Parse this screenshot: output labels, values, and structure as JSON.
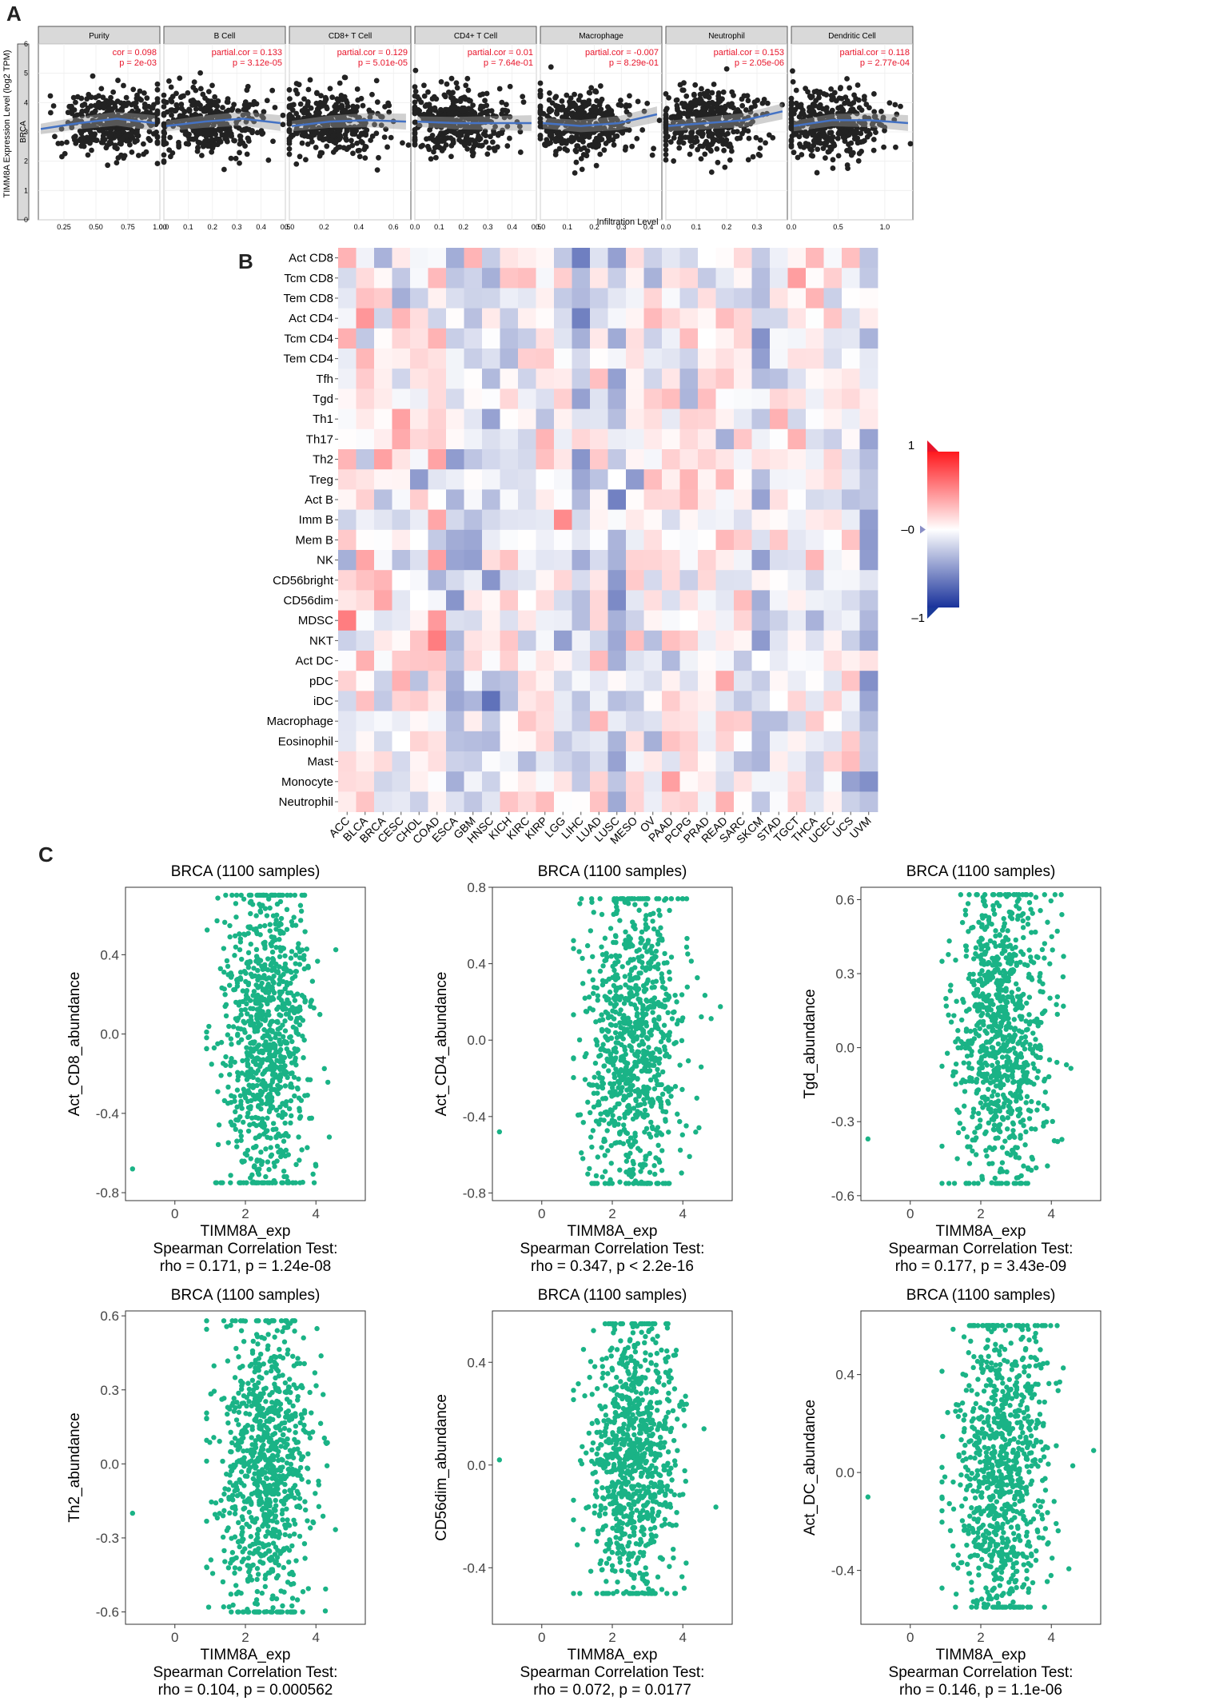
{
  "panel_labels": {
    "a": "A",
    "b": "B",
    "c": "C"
  },
  "colors": {
    "accent_red": "#e8142a",
    "accent_blue": "#1b3a9a",
    "scatter_green": "#1ab386",
    "strip": "#d9d9d9",
    "line_blue": "#4472c4"
  },
  "chart_data": [
    {
      "type": "scatter",
      "panel": "A",
      "cancer": "BRCA",
      "ylabel": "TIMM8A Expression Level (log2 TPM)",
      "xlabel": "Infiltration Level",
      "ylim": [
        0,
        6
      ],
      "yticks": [
        0,
        1,
        2,
        3,
        4,
        5,
        6
      ],
      "facets": [
        {
          "name": "Purity",
          "stat1": "cor = 0.098",
          "stat2": "p = 2e-03",
          "xlim": [
            0.05,
            1.0
          ],
          "xticks": [
            0.25,
            0.5,
            0.75,
            1.0
          ],
          "xtick_labels": [
            "0.25",
            "0.50",
            "0.75",
            "1.00"
          ],
          "trend": [
            3.1,
            3.3,
            3.45,
            3.3
          ]
        },
        {
          "name": "B Cell",
          "stat1": "partial.cor = 0.133",
          "stat2": "p = 3.12e-05",
          "xlim": [
            0,
            0.5
          ],
          "xticks": [
            0,
            0.1,
            0.2,
            0.3,
            0.4,
            0.5
          ],
          "xtick_labels": [
            "0.0",
            "0.1",
            "0.2",
            "0.3",
            "0.4",
            "0.5"
          ],
          "trend": [
            3.2,
            3.35,
            3.45,
            3.3
          ]
        },
        {
          "name": "CD8+ T Cell",
          "stat1": "partial.cor = 0.129",
          "stat2": "p = 5.01e-05",
          "xlim": [
            0,
            0.7
          ],
          "xticks": [
            0,
            0.2,
            0.4,
            0.6
          ],
          "xtick_labels": [
            "0.0",
            "0.2",
            "0.4",
            "0.6"
          ],
          "trend": [
            3.2,
            3.35,
            3.4,
            3.35
          ]
        },
        {
          "name": "CD4+ T Cell",
          "stat1": "partial.cor = 0.01",
          "stat2": "p = 7.64e-01",
          "xlim": [
            0,
            0.5
          ],
          "xticks": [
            0,
            0.1,
            0.2,
            0.3,
            0.4,
            0.5
          ],
          "xtick_labels": [
            "0.0",
            "0.1",
            "0.2",
            "0.3",
            "0.4",
            "0.5"
          ],
          "trend": [
            3.35,
            3.3,
            3.3,
            3.3
          ]
        },
        {
          "name": "Macrophage",
          "stat1": "partial.cor = -0.007",
          "stat2": "p = 8.29e-01",
          "xlim": [
            0,
            0.45
          ],
          "xticks": [
            0,
            0.1,
            0.2,
            0.3,
            0.4
          ],
          "xtick_labels": [
            "0.0",
            "0.1",
            "0.2",
            "0.3",
            "0.4"
          ],
          "trend": [
            3.3,
            3.2,
            3.3,
            3.6
          ]
        },
        {
          "name": "Neutrophil",
          "stat1": "partial.cor = 0.153",
          "stat2": "p = 2.05e-06",
          "xlim": [
            0,
            0.4
          ],
          "xticks": [
            0,
            0.1,
            0.2,
            0.3
          ],
          "xtick_labels": [
            "0.0",
            "0.1",
            "0.2",
            "0.3"
          ],
          "trend": [
            3.2,
            3.3,
            3.4,
            3.7
          ]
        },
        {
          "name": "Dendritic Cell",
          "stat1": "partial.cor = 0.118",
          "stat2": "p = 2.77e-04",
          "xlim": [
            0,
            1.3
          ],
          "xticks": [
            0,
            0.5,
            1.0
          ],
          "xtick_labels": [
            "0.0",
            "0.5",
            "1.0"
          ],
          "trend": [
            3.2,
            3.4,
            3.4,
            3.3
          ]
        }
      ]
    },
    {
      "type": "heatmap",
      "panel": "B",
      "rows": [
        "Act CD8",
        "Tcm CD8",
        "Tem CD8",
        "Act CD4",
        "Tcm CD4",
        "Tem CD4",
        "Tfh",
        "Tgd",
        "Th1",
        "Th17",
        "Th2",
        "Treg",
        "Act B",
        "Imm B",
        "Mem B",
        "NK",
        "CD56bright",
        "CD56dim",
        "MDSC",
        "NKT",
        "Act DC",
        "pDC",
        "iDC",
        "Macrophage",
        "Eosinophil",
        "Mast",
        "Monocyte",
        "Neutrophil"
      ],
      "columns": [
        "ACC",
        "BLCA",
        "BRCA",
        "CESC",
        "CHOL",
        "COAD",
        "ESCA",
        "GBM",
        "HNSC",
        "KICH",
        "KIRC",
        "KIRP",
        "LGG",
        "LIHC",
        "LUAD",
        "LUSC",
        "MESO",
        "OV",
        "PAAD",
        "PCPG",
        "PRAD",
        "READ",
        "SARC",
        "SKCM",
        "STAD",
        "TGCT",
        "THCA",
        "UCEC",
        "UCS",
        "UVM"
      ],
      "legend": {
        "max_label": "1",
        "mid_label": "0",
        "min_label": "-1",
        "range": [
          -1,
          1
        ]
      }
    },
    {
      "type": "scatter",
      "panel": "C",
      "plots": [
        {
          "title": "BRCA (1100 samples)",
          "xlabel": "TIMM8A_exp",
          "ylabel": "Act_CD8_abundance",
          "stat_title": "Spearman Correlation Test:",
          "stat": "rho = 0.171, p = 1.24e-08",
          "xlim": [
            -1.4,
            5.4
          ],
          "ylim": [
            -0.84,
            0.74
          ],
          "xticks": [
            0,
            2,
            4
          ],
          "yticks": [
            -0.8,
            -0.4,
            0.0,
            0.4
          ],
          "ytick_labels": [
            "-0.8",
            "-0.4",
            "0.0",
            "0.4"
          ],
          "outlier": [
            -1.2,
            -0.68
          ],
          "cloud_y": [
            -0.75,
            0.7
          ],
          "cloud_center": 0.0
        },
        {
          "title": "BRCA (1100 samples)",
          "xlabel": "TIMM8A_exp",
          "ylabel": "Act_CD4_abundance",
          "stat_title": "Spearman Correlation Test:",
          "stat": "rho = 0.347, p < 2.2e-16",
          "xlim": [
            -1.4,
            5.4
          ],
          "ylim": [
            -0.84,
            0.8
          ],
          "xticks": [
            0,
            2,
            4
          ],
          "yticks": [
            -0.8,
            -0.4,
            0.0,
            0.4,
            0.8
          ],
          "ytick_labels": [
            "-0.8",
            "-0.4",
            "0.0",
            "0.4",
            "0.8"
          ],
          "outlier": [
            -1.2,
            -0.48
          ],
          "cloud_y": [
            -0.75,
            0.74
          ],
          "cloud_center": 0.0
        },
        {
          "title": "BRCA (1100 samples)",
          "xlabel": "TIMM8A_exp",
          "ylabel": "Tgd_abundance",
          "stat_title": "Spearman Correlation Test:",
          "stat": "rho = 0.177, p = 3.43e-09",
          "xlim": [
            -1.4,
            5.4
          ],
          "ylim": [
            -0.62,
            0.65
          ],
          "xticks": [
            0,
            2,
            4
          ],
          "yticks": [
            -0.6,
            -0.3,
            0.0,
            0.3,
            0.6
          ],
          "ytick_labels": [
            "-0.6",
            "-0.3",
            "0.0",
            "0.3",
            "0.6"
          ],
          "outlier": [
            -1.2,
            -0.37
          ],
          "cloud_y": [
            -0.55,
            0.62
          ],
          "cloud_center": 0.0
        },
        {
          "title": "BRCA (1100 samples)",
          "xlabel": "TIMM8A_exp",
          "ylabel": "Th2_abundance",
          "stat_title": "Spearman Correlation Test:",
          "stat": "rho = 0.104, p = 0.000562",
          "xlim": [
            -1.4,
            5.4
          ],
          "ylim": [
            -0.65,
            0.62
          ],
          "xticks": [
            0,
            2,
            4
          ],
          "yticks": [
            -0.6,
            -0.3,
            0.0,
            0.3,
            0.6
          ],
          "ytick_labels": [
            "-0.6",
            "-0.3",
            "0.0",
            "0.3",
            "0.6"
          ],
          "outlier": [
            -1.2,
            -0.2
          ],
          "cloud_y": [
            -0.6,
            0.58
          ],
          "cloud_center": 0.0
        },
        {
          "title": "BRCA (1100 samples)",
          "xlabel": "TIMM8A_exp",
          "ylabel": "CD56dim_abundance",
          "stat_title": "Spearman Correlation Test:",
          "stat": "rho = 0.072, p = 0.0177",
          "xlim": [
            -1.4,
            5.4
          ],
          "ylim": [
            -0.62,
            0.6
          ],
          "xticks": [
            0,
            2,
            4
          ],
          "yticks": [
            -0.4,
            0.0,
            0.4
          ],
          "ytick_labels": [
            "-0.4",
            "0.0",
            "0.4"
          ],
          "outlier": [
            -1.2,
            0.02
          ],
          "cloud_y": [
            -0.5,
            0.55
          ],
          "cloud_center": 0.0
        },
        {
          "title": "BRCA (1100 samples)",
          "xlabel": "TIMM8A_exp",
          "ylabel": "Act_DC_abundance",
          "stat_title": "Spearman Correlation Test:",
          "stat": "rho = 0.146, p = 1.1e-06",
          "xlim": [
            -1.4,
            5.4
          ],
          "ylim": [
            -0.62,
            0.66
          ],
          "xticks": [
            0,
            2,
            4
          ],
          "yticks": [
            -0.4,
            0.0,
            0.4
          ],
          "ytick_labels": [
            "-0.4",
            "0.0",
            "0.4"
          ],
          "outlier": [
            -1.2,
            -0.1
          ],
          "cloud_y": [
            -0.55,
            0.6
          ],
          "cloud_center": 0.0
        }
      ]
    }
  ]
}
